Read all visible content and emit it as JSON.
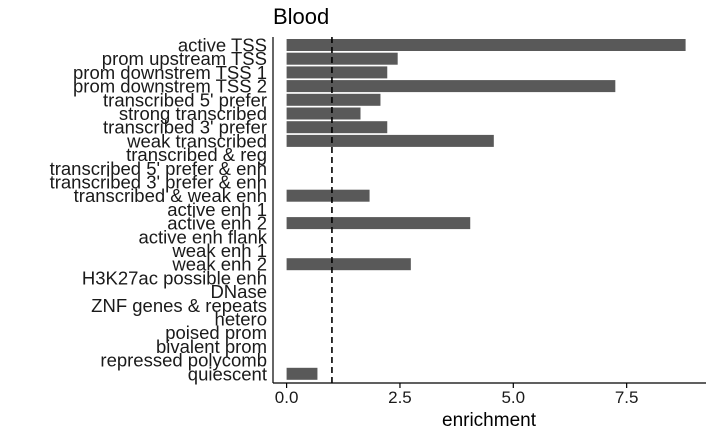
{
  "chart_data": {
    "type": "bar",
    "orientation": "horizontal",
    "title": "Blood",
    "xlabel": "enrichment",
    "ylabel": "",
    "xlim": [
      -0.3,
      9.25
    ],
    "xticks": [
      0,
      2.5,
      5,
      7.5
    ],
    "xtick_labels": [
      "0.0",
      "2.5",
      "5.0",
      "7.5"
    ],
    "reference_line": {
      "x": 1.0,
      "style": "dashed"
    },
    "grid": false,
    "bar_color": "#595959",
    "categories": [
      "active TSS",
      "prom upstream TSS",
      "prom downstrem TSS 1",
      "prom downstrem TSS 2",
      "transcribed 5' prefer",
      "strong transcribed",
      "transcribed 3' prefer",
      "weak transcribed",
      "transcribed & reg",
      "transcribed 5' prefer & enh",
      "transcribed 3' prefer & enh",
      "transcribed & weak enh",
      "active enh 1",
      "active enh 2",
      "active enh flank",
      "weak enh 1",
      "weak enh 2",
      "H3K27ac possible enh",
      "DNase",
      "ZNF genes & repeats",
      "hetero",
      "poised prom",
      "bivalent prom",
      "repressed polycomb",
      "quiescent"
    ],
    "values": [
      8.8,
      2.45,
      2.22,
      7.25,
      2.07,
      1.63,
      2.22,
      4.57,
      0,
      0,
      0,
      1.83,
      0,
      4.05,
      0,
      0,
      2.74,
      0,
      0,
      0,
      0,
      0,
      0,
      0,
      0.68
    ]
  }
}
